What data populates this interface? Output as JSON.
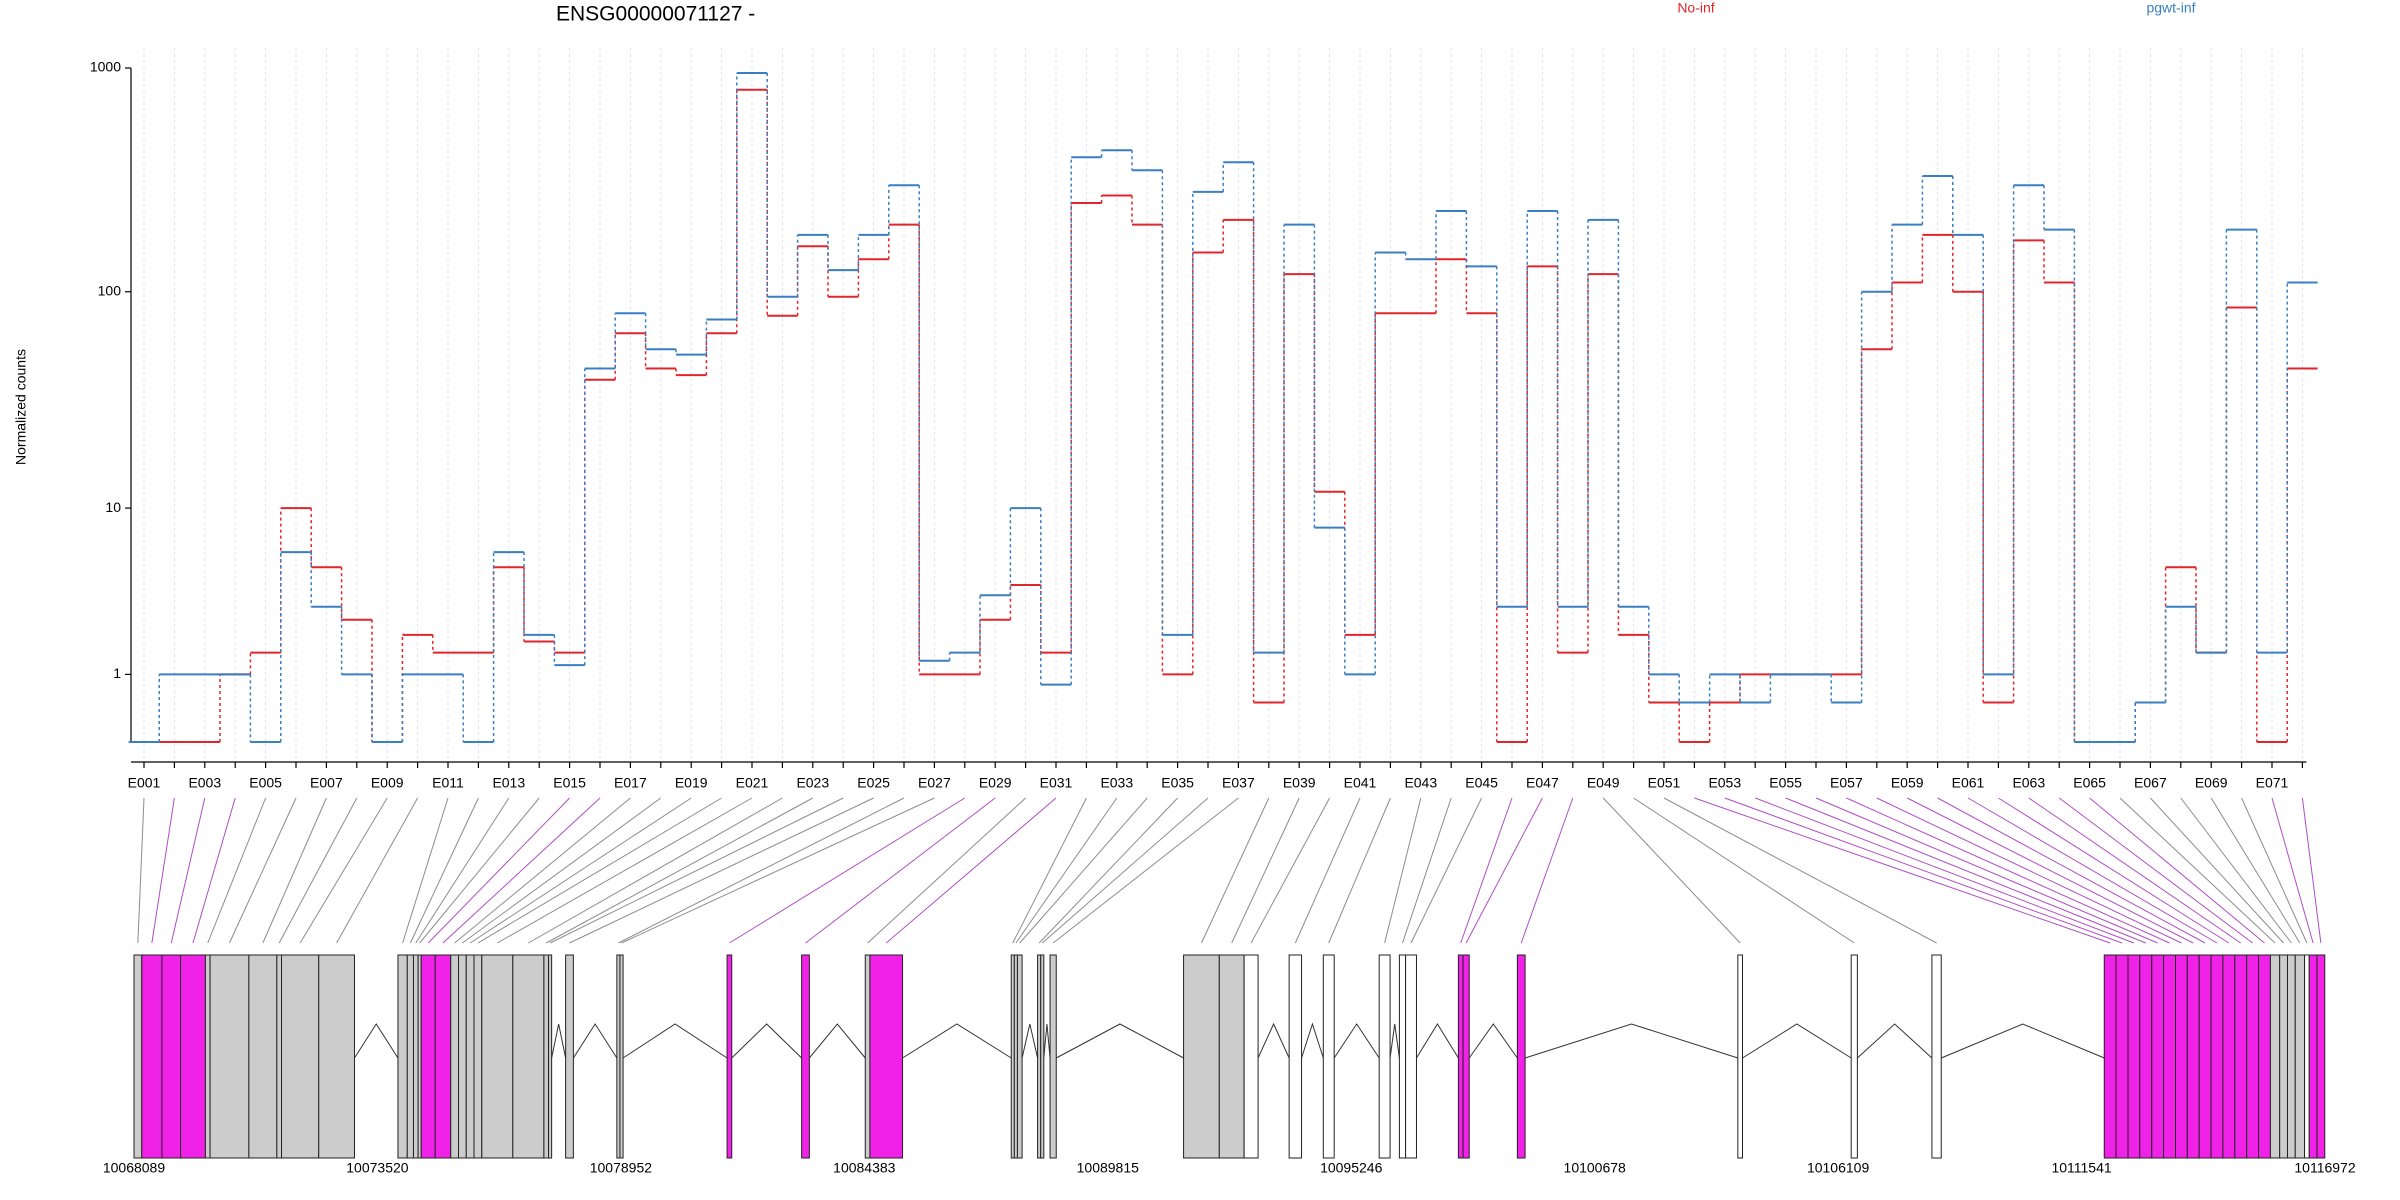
{
  "chart_data": {
    "type": "exon-step",
    "title": "ENSG00000071127 -",
    "y_label": "Normalized counts",
    "yscale": "log1p",
    "ylim": [
      0,
      1000
    ],
    "yticks": [
      1,
      10,
      100,
      1000
    ],
    "grid": true,
    "legend": "top",
    "categories": [
      "E001",
      null,
      "E003",
      null,
      "E005",
      null,
      "E007",
      null,
      "E009",
      null,
      "E011",
      null,
      "E013",
      null,
      "E015",
      null,
      "E017",
      null,
      "E019",
      null,
      "E021",
      null,
      "E023",
      null,
      "E025",
      null,
      "E027",
      null,
      "E029",
      null,
      "E031",
      null,
      "E033",
      null,
      "E035",
      null,
      "E037",
      null,
      "E039",
      null,
      "E041",
      null,
      "E043",
      null,
      "E045",
      null,
      "E047",
      null,
      "E049",
      null,
      "E051",
      null,
      "E053",
      null,
      "E055",
      null,
      "E057",
      null,
      "E059",
      null,
      "E061",
      null,
      "E063",
      null,
      "E065",
      null,
      "E067",
      null,
      "E069",
      null,
      "E071",
      null
    ],
    "series": [
      {
        "name": "No-inf",
        "color": "#e0262b",
        "values": [
          0,
          0,
          0,
          1,
          1.5,
          10,
          5,
          2.5,
          0,
          2,
          1.5,
          1.5,
          5,
          1.8,
          1.5,
          40,
          65,
          45,
          42,
          65,
          800,
          78,
          160,
          95,
          140,
          200,
          1,
          1,
          2.5,
          4,
          1.5,
          250,
          270,
          200,
          1,
          150,
          210,
          0.5,
          120,
          12,
          2,
          80,
          80,
          140,
          80,
          0,
          130,
          1.5,
          120,
          2,
          0.5,
          0,
          0.5,
          1,
          1,
          1,
          1,
          55,
          110,
          180,
          100,
          0.5,
          170,
          110,
          0,
          0,
          0.5,
          5,
          1.5,
          85,
          0,
          45
        ]
      },
      {
        "name": "pgwt-inf",
        "color": "#3a7fc1",
        "values": [
          0,
          1,
          1,
          1,
          0,
          6,
          3,
          1,
          0,
          1,
          1,
          0,
          6,
          2,
          1.2,
          45,
          80,
          55,
          52,
          75,
          950,
          95,
          180,
          125,
          180,
          300,
          1.3,
          1.5,
          3.5,
          10,
          0.8,
          400,
          430,
          350,
          2,
          280,
          380,
          1.5,
          200,
          8,
          1,
          150,
          140,
          230,
          130,
          3,
          230,
          3,
          210,
          3,
          1,
          0.5,
          1,
          0.5,
          1,
          1,
          0.5,
          100,
          200,
          330,
          180,
          1,
          300,
          190,
          0,
          0,
          0.5,
          3,
          1.5,
          190,
          1.5,
          110
        ]
      }
    ],
    "gene_xlim": [
      10068089,
      10116972
    ],
    "gene_xticks": [
      10068089,
      10073520,
      10078952,
      10084383,
      10089815,
      10095246,
      10100678,
      10106109,
      10111541,
      10116972
    ],
    "exons": [
      [
        10068089,
        10068262
      ],
      [
        10068262,
        10068713
      ],
      [
        10068713,
        10069128
      ],
      [
        10069128,
        10069682
      ],
      [
        10069682,
        10069786
      ],
      [
        10069786,
        10070652
      ],
      [
        10070652,
        10071276
      ],
      [
        10071276,
        10071380
      ],
      [
        10071380,
        10072211
      ],
      [
        10072211,
        10073008
      ],
      [
        10073978,
        10074186
      ],
      [
        10074186,
        10074324
      ],
      [
        10074324,
        10074428
      ],
      [
        10074428,
        10074497
      ],
      [
        10074497,
        10074809
      ],
      [
        10074809,
        10075156
      ],
      [
        10075156,
        10075329
      ],
      [
        10075329,
        10075502
      ],
      [
        10075502,
        10075675
      ],
      [
        10075675,
        10075849
      ],
      [
        10075849,
        10076541
      ],
      [
        10076541,
        10077234
      ],
      [
        10077234,
        10077338
      ],
      [
        10077338,
        10077407
      ],
      [
        10077719,
        10077892
      ],
      [
        10078862,
        10078931
      ],
      [
        10078931,
        10079001
      ],
      [
        10081321,
        10081425
      ],
      [
        10082984,
        10083157
      ],
      [
        10084404,
        10084508
      ],
      [
        10084508,
        10085236
      ],
      [
        10087661,
        10087730
      ],
      [
        10087730,
        10087799
      ],
      [
        10087799,
        10087903
      ],
      [
        10088249,
        10088319
      ],
      [
        10088319,
        10088388
      ],
      [
        10088527,
        10088665
      ],
      [
        10091506,
        10092303
      ],
      [
        10092303,
        10092857
      ],
      [
        10092857,
        10093168
      ],
      [
        10093861,
        10094138
      ],
      [
        10094623,
        10094866
      ],
      [
        10095870,
        10096113
      ],
      [
        10096321,
        10096459
      ],
      [
        10096459,
        10096702
      ],
      [
        10097637,
        10097741
      ],
      [
        10097741,
        10097879
      ],
      [
        10098953,
        10099126
      ],
      [
        10103872,
        10103976
      ],
      [
        10106401,
        10106539
      ],
      [
        10108202,
        10108410
      ],
      [
        10112047,
        10112310
      ],
      [
        10112310,
        10112577
      ],
      [
        10112577,
        10112840
      ],
      [
        10112840,
        10113107
      ],
      [
        10113107,
        10113370
      ],
      [
        10113370,
        10113637
      ],
      [
        10113637,
        10113900
      ],
      [
        10113900,
        10114164
      ],
      [
        10114164,
        10114430
      ],
      [
        10114430,
        10114694
      ],
      [
        10114694,
        10114960
      ],
      [
        10114960,
        10115224
      ],
      [
        10115224,
        10115490
      ],
      [
        10115490,
        10115754
      ],
      [
        10115754,
        10115961
      ],
      [
        10115961,
        10116135
      ],
      [
        10116135,
        10116308
      ],
      [
        10116308,
        10116516
      ],
      [
        10116516,
        10116620
      ],
      [
        10116620,
        10116793
      ],
      [
        10116793,
        10116967
      ]
    ],
    "exon_fills": [
      "#cccccc",
      "#f022e8",
      "#f022e8",
      "#f022e8",
      "#cccccc",
      "#cccccc",
      "#cccccc",
      "#cccccc",
      "#cccccc",
      "#cccccc",
      "#cccccc",
      "#cccccc",
      "#cccccc",
      "#cccccc",
      "#f022e8",
      "#f022e8",
      "#cccccc",
      "#cccccc",
      "#cccccc",
      "#cccccc",
      "#cccccc",
      "#cccccc",
      "#cccccc",
      "#cccccc",
      "#cccccc",
      "#cccccc",
      "#cccccc",
      "#f022e8",
      "#f022e8",
      "#cccccc",
      "#f022e8",
      "#cccccc",
      "#cccccc",
      "#cccccc",
      "#cccccc",
      "#cccccc",
      "#cccccc",
      "#cccccc",
      "#cccccc",
      "#ffffff",
      "#ffffff",
      "#ffffff",
      "#ffffff",
      "#ffffff",
      "#ffffff",
      "#f022e8",
      "#f022e8",
      "#f022e8",
      "#ffffff",
      "#ffffff",
      "#ffffff",
      "#f022e8",
      "#f022e8",
      "#f022e8",
      "#f022e8",
      "#f022e8",
      "#f022e8",
      "#f022e8",
      "#f022e8",
      "#f022e8",
      "#f022e8",
      "#f022e8",
      "#f022e8",
      "#f022e8",
      "#f022e8",
      "#cccccc",
      "#cccccc",
      "#cccccc",
      "#cccccc",
      "#ffffff",
      "#f022e8",
      "#f022e8"
    ]
  }
}
